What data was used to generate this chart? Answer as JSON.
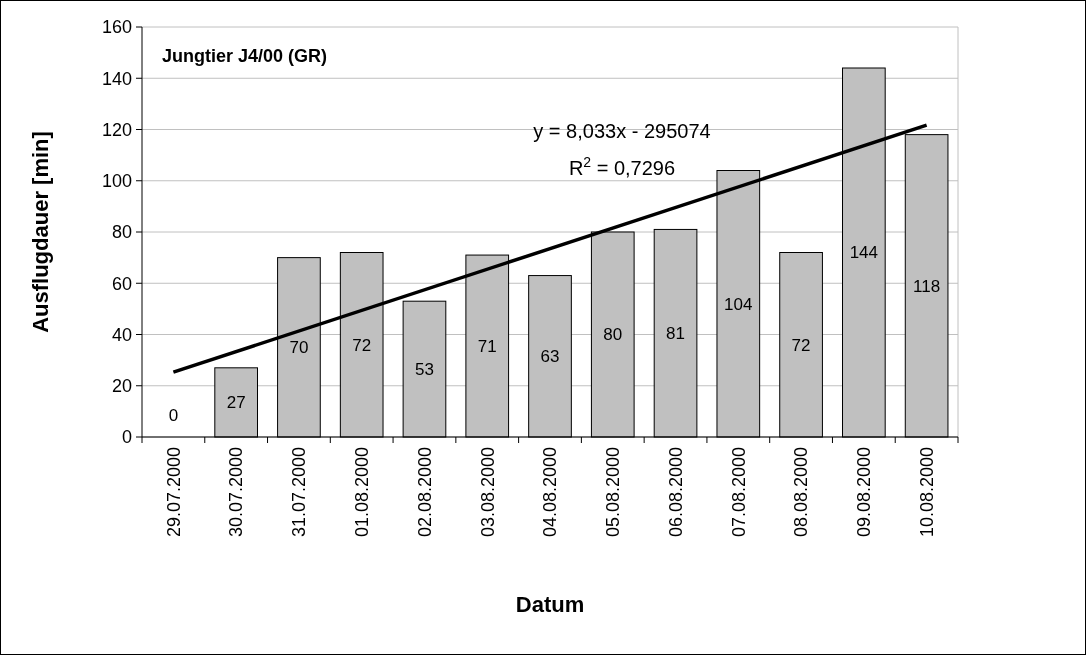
{
  "chart_data": {
    "type": "bar",
    "title": "Jungtier J4/00 (GR)",
    "xlabel": "Datum",
    "ylabel": "Ausflugdauer [min]",
    "categories": [
      "29.07.2000",
      "30.07.2000",
      "31.07.2000",
      "01.08.2000",
      "02.08.2000",
      "03.08.2000",
      "04.08.2000",
      "05.08.2000",
      "06.08.2000",
      "07.08.2000",
      "08.08.2000",
      "09.08.2000",
      "10.08.2000"
    ],
    "series": [
      {
        "color": "#c0c0c0",
        "values": [
          0,
          27,
          70,
          72,
          53,
          71,
          63,
          80,
          81,
          104,
          72,
          144,
          118
        ],
        "value_labels": [
          "0",
          "27",
          "70",
          "72",
          "53",
          "71",
          "63",
          "80",
          "81",
          "104",
          "72",
          "144",
          "118"
        ]
      },
      {
        "type": "line",
        "color": "#000000",
        "x": [
          "29.07.2000",
          "10.08.2000"
        ],
        "values": [
          25.3,
          121.7
        ]
      }
    ],
    "annotations": [
      "y = 8,033x - 295074",
      "R$^{2}$ = 0,7296"
    ],
    "ylim": [
      0,
      160
    ],
    "yticks": [
      0,
      20,
      40,
      60,
      80,
      100,
      120,
      140,
      160
    ],
    "grid": "y",
    "marker": "none",
    "line_style": "solid"
  }
}
